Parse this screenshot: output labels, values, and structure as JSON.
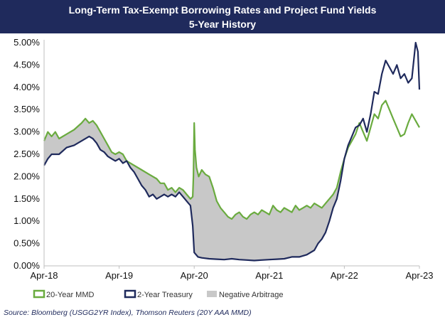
{
  "chart_data": {
    "type": "line",
    "title": "Long-Term Tax-Exempt Borrowing Rates and Project Fund Yields",
    "subtitle": "5-Year History",
    "x_ticks": [
      "Apr-18",
      "Apr-19",
      "Apr-20",
      "Apr-21",
      "Apr-22",
      "Apr-23"
    ],
    "y_ticks": [
      "0.00%",
      "0.50%",
      "1.00%",
      "1.50%",
      "2.00%",
      "2.50%",
      "3.00%",
      "3.50%",
      "4.00%",
      "4.50%",
      "5.00%"
    ],
    "xlim": [
      0,
      5
    ],
    "ylim": [
      0,
      5
    ],
    "series": [
      {
        "name": "20-Year MMD",
        "color": "#6aab3f",
        "points": [
          [
            0,
            2.8
          ],
          [
            0.05,
            3.0
          ],
          [
            0.1,
            2.9
          ],
          [
            0.15,
            3.0
          ],
          [
            0.2,
            2.85
          ],
          [
            0.3,
            2.95
          ],
          [
            0.4,
            3.05
          ],
          [
            0.5,
            3.2
          ],
          [
            0.55,
            3.3
          ],
          [
            0.6,
            3.2
          ],
          [
            0.65,
            3.25
          ],
          [
            0.7,
            3.15
          ],
          [
            0.75,
            3.0
          ],
          [
            0.8,
            2.85
          ],
          [
            0.85,
            2.7
          ],
          [
            0.9,
            2.55
          ],
          [
            0.95,
            2.5
          ],
          [
            1.0,
            2.55
          ],
          [
            1.05,
            2.5
          ],
          [
            1.1,
            2.35
          ],
          [
            1.2,
            2.25
          ],
          [
            1.3,
            2.15
          ],
          [
            1.4,
            2.05
          ],
          [
            1.5,
            1.95
          ],
          [
            1.55,
            1.85
          ],
          [
            1.6,
            1.85
          ],
          [
            1.65,
            1.7
          ],
          [
            1.7,
            1.75
          ],
          [
            1.75,
            1.65
          ],
          [
            1.8,
            1.75
          ],
          [
            1.85,
            1.7
          ],
          [
            1.9,
            1.6
          ],
          [
            1.95,
            1.5
          ],
          [
            1.98,
            1.55
          ],
          [
            1.99,
            2.0
          ],
          [
            2.0,
            3.2
          ],
          [
            2.01,
            2.6
          ],
          [
            2.03,
            2.2
          ],
          [
            2.06,
            2.0
          ],
          [
            2.1,
            2.15
          ],
          [
            2.15,
            2.05
          ],
          [
            2.2,
            2.0
          ],
          [
            2.25,
            1.75
          ],
          [
            2.3,
            1.45
          ],
          [
            2.35,
            1.3
          ],
          [
            2.4,
            1.2
          ],
          [
            2.45,
            1.1
          ],
          [
            2.5,
            1.05
          ],
          [
            2.55,
            1.15
          ],
          [
            2.6,
            1.2
          ],
          [
            2.65,
            1.1
          ],
          [
            2.7,
            1.05
          ],
          [
            2.75,
            1.15
          ],
          [
            2.8,
            1.2
          ],
          [
            2.85,
            1.15
          ],
          [
            2.9,
            1.25
          ],
          [
            2.95,
            1.2
          ],
          [
            3.0,
            1.15
          ],
          [
            3.05,
            1.35
          ],
          [
            3.1,
            1.25
          ],
          [
            3.15,
            1.2
          ],
          [
            3.2,
            1.3
          ],
          [
            3.25,
            1.25
          ],
          [
            3.3,
            1.2
          ],
          [
            3.35,
            1.35
          ],
          [
            3.4,
            1.25
          ],
          [
            3.45,
            1.3
          ],
          [
            3.5,
            1.35
          ],
          [
            3.55,
            1.3
          ],
          [
            3.6,
            1.4
          ],
          [
            3.65,
            1.35
          ],
          [
            3.7,
            1.3
          ],
          [
            3.75,
            1.4
          ],
          [
            3.8,
            1.5
          ],
          [
            3.85,
            1.6
          ],
          [
            3.9,
            1.75
          ],
          [
            3.95,
            2.1
          ],
          [
            4.0,
            2.4
          ],
          [
            4.05,
            2.65
          ],
          [
            4.1,
            2.8
          ],
          [
            4.15,
            2.95
          ],
          [
            4.2,
            3.2
          ],
          [
            4.25,
            3.0
          ],
          [
            4.3,
            2.8
          ],
          [
            4.35,
            3.1
          ],
          [
            4.4,
            3.4
          ],
          [
            4.45,
            3.3
          ],
          [
            4.5,
            3.6
          ],
          [
            4.55,
            3.7
          ],
          [
            4.6,
            3.5
          ],
          [
            4.65,
            3.3
          ],
          [
            4.7,
            3.1
          ],
          [
            4.75,
            2.9
          ],
          [
            4.8,
            2.95
          ],
          [
            4.85,
            3.2
          ],
          [
            4.9,
            3.4
          ],
          [
            4.95,
            3.25
          ],
          [
            5.0,
            3.1
          ]
        ]
      },
      {
        "name": "2-Year Treasury",
        "color": "#1f2a5c",
        "points": [
          [
            0,
            2.25
          ],
          [
            0.05,
            2.4
          ],
          [
            0.1,
            2.5
          ],
          [
            0.2,
            2.5
          ],
          [
            0.3,
            2.65
          ],
          [
            0.4,
            2.7
          ],
          [
            0.5,
            2.8
          ],
          [
            0.6,
            2.9
          ],
          [
            0.65,
            2.85
          ],
          [
            0.7,
            2.75
          ],
          [
            0.75,
            2.6
          ],
          [
            0.8,
            2.55
          ],
          [
            0.85,
            2.45
          ],
          [
            0.9,
            2.4
          ],
          [
            0.95,
            2.35
          ],
          [
            1.0,
            2.4
          ],
          [
            1.05,
            2.3
          ],
          [
            1.1,
            2.35
          ],
          [
            1.15,
            2.2
          ],
          [
            1.2,
            2.1
          ],
          [
            1.25,
            1.95
          ],
          [
            1.3,
            1.8
          ],
          [
            1.35,
            1.7
          ],
          [
            1.4,
            1.55
          ],
          [
            1.45,
            1.6
          ],
          [
            1.5,
            1.5
          ],
          [
            1.55,
            1.55
          ],
          [
            1.6,
            1.6
          ],
          [
            1.65,
            1.55
          ],
          [
            1.7,
            1.6
          ],
          [
            1.75,
            1.55
          ],
          [
            1.8,
            1.65
          ],
          [
            1.85,
            1.55
          ],
          [
            1.9,
            1.45
          ],
          [
            1.95,
            1.35
          ],
          [
            1.98,
            0.9
          ],
          [
            2.0,
            0.3
          ],
          [
            2.05,
            0.2
          ],
          [
            2.1,
            0.18
          ],
          [
            2.2,
            0.16
          ],
          [
            2.3,
            0.15
          ],
          [
            2.4,
            0.14
          ],
          [
            2.5,
            0.16
          ],
          [
            2.6,
            0.14
          ],
          [
            2.7,
            0.13
          ],
          [
            2.8,
            0.12
          ],
          [
            2.9,
            0.13
          ],
          [
            3.0,
            0.14
          ],
          [
            3.1,
            0.15
          ],
          [
            3.2,
            0.16
          ],
          [
            3.3,
            0.2
          ],
          [
            3.4,
            0.2
          ],
          [
            3.5,
            0.25
          ],
          [
            3.6,
            0.35
          ],
          [
            3.65,
            0.5
          ],
          [
            3.7,
            0.6
          ],
          [
            3.75,
            0.75
          ],
          [
            3.8,
            1.0
          ],
          [
            3.85,
            1.3
          ],
          [
            3.9,
            1.5
          ],
          [
            3.95,
            1.9
          ],
          [
            4.0,
            2.4
          ],
          [
            4.05,
            2.7
          ],
          [
            4.1,
            2.9
          ],
          [
            4.15,
            3.1
          ],
          [
            4.2,
            3.15
          ],
          [
            4.25,
            3.3
          ],
          [
            4.3,
            3.0
          ],
          [
            4.35,
            3.4
          ],
          [
            4.4,
            3.9
          ],
          [
            4.45,
            3.85
          ],
          [
            4.5,
            4.3
          ],
          [
            4.55,
            4.6
          ],
          [
            4.6,
            4.45
          ],
          [
            4.65,
            4.3
          ],
          [
            4.7,
            4.5
          ],
          [
            4.75,
            4.2
          ],
          [
            4.8,
            4.3
          ],
          [
            4.85,
            4.1
          ],
          [
            4.9,
            4.2
          ],
          [
            4.95,
            5.0
          ],
          [
            4.98,
            4.8
          ],
          [
            5.0,
            3.95
          ]
        ]
      }
    ],
    "legend": [
      {
        "label": "20-Year MMD",
        "kind": "line",
        "color": "#6aab3f"
      },
      {
        "label": "2-Year Treasury",
        "kind": "line",
        "color": "#1f2a5c"
      },
      {
        "label": "Negative Arbitrage",
        "kind": "area",
        "color": "#c8c8c8"
      }
    ],
    "fill_area": {
      "name": "Negative Arbitrage",
      "color": "#c8c8c8"
    },
    "source": "Source: Bloomberg (USGG2YR Index), Thomson Reuters (20Y AAA MMD)"
  }
}
